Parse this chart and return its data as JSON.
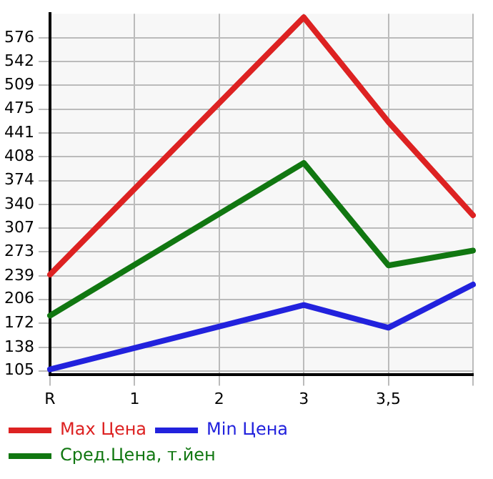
{
  "chart_data": {
    "type": "line",
    "categories": [
      "R",
      "1",
      "2",
      "3",
      "3,5",
      null
    ],
    "series": [
      {
        "name": "Max Цена",
        "color": "#dd2222",
        "values": [
          241,
          null,
          null,
          605,
          457,
          325
        ]
      },
      {
        "name": "Min Цена",
        "color": "#2222dd",
        "values": [
          107,
          null,
          null,
          198,
          166,
          227
        ]
      },
      {
        "name": "Сред.Цена, т.йен",
        "color": "#117711",
        "values": [
          183,
          null,
          null,
          399,
          254,
          275
        ]
      }
    ],
    "ylim": [
      100,
      610
    ],
    "yticks": [
      105,
      138,
      172,
      206,
      239,
      273,
      307,
      340,
      374,
      408,
      441,
      475,
      509,
      542,
      576
    ],
    "grid": true,
    "legend": "bottom",
    "marker": "none",
    "line_style": "solid"
  }
}
